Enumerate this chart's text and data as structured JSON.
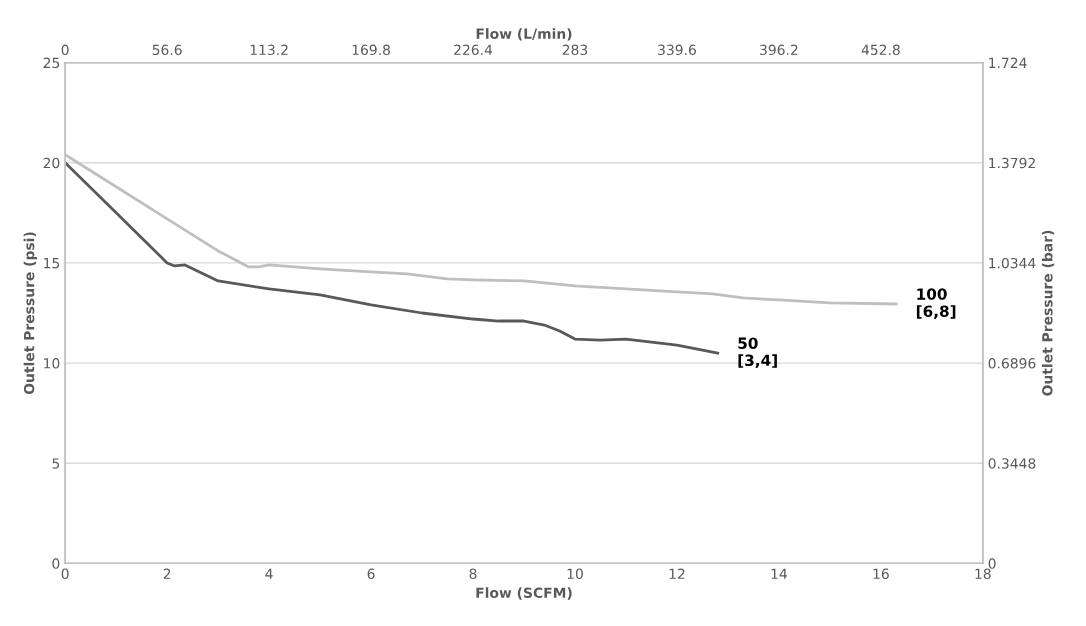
{
  "chart_data": {
    "type": "line",
    "xlabel": "Flow (SCFM)",
    "ylabel": "Outlet Pressure (psi)",
    "y2label": "Outlet Pressure (bar)",
    "x2label": "Flow (L/min)",
    "xlim": [
      0,
      18
    ],
    "xticks": [
      0,
      2,
      4,
      6,
      8,
      10,
      12,
      14,
      16,
      18
    ],
    "ylim": [
      0,
      25
    ],
    "yticks": [
      0,
      5,
      10,
      15,
      20,
      25
    ],
    "x2lim": [
      0,
      509.4
    ],
    "x2ticks": [
      0,
      56.6,
      113.2,
      169.8,
      226.4,
      283,
      339.6,
      396.2,
      452.8
    ],
    "y2lim": [
      0,
      1.724
    ],
    "y2ticks": [
      0,
      0.3448,
      0.6896,
      1.0344,
      1.3792,
      1.724
    ],
    "grid": "y",
    "legend": false,
    "marker": "none",
    "line_style": "solid",
    "series": [
      {
        "name": "50\n[3,4]",
        "color": "#595959",
        "x": [
          0,
          1,
          2,
          2.15,
          2.35,
          3,
          4,
          5,
          6,
          7,
          8,
          8.5,
          9,
          9.4,
          9.7,
          10,
          10.5,
          11,
          12,
          12.8
        ],
        "values": [
          20,
          17.5,
          15,
          14.85,
          14.9,
          14.1,
          13.7,
          13.4,
          12.9,
          12.5,
          12.2,
          12.1,
          12.1,
          11.9,
          11.6,
          11.2,
          11.15,
          11.2,
          10.9,
          10.5
        ]
      },
      {
        "name": "100\n[6,8]",
        "color": "#bfbfbf",
        "x": [
          0,
          1,
          2,
          3,
          3.6,
          3.8,
          4,
          5,
          6,
          6.7,
          7.5,
          8,
          9,
          10,
          11,
          12,
          12.7,
          13.3,
          14,
          15,
          16.3
        ],
        "values": [
          20.4,
          18.8,
          17.2,
          15.6,
          14.8,
          14.8,
          14.9,
          14.7,
          14.55,
          14.45,
          14.2,
          14.15,
          14.1,
          13.85,
          13.7,
          13.55,
          13.45,
          13.25,
          13.15,
          13.0,
          12.95
        ]
      }
    ]
  }
}
